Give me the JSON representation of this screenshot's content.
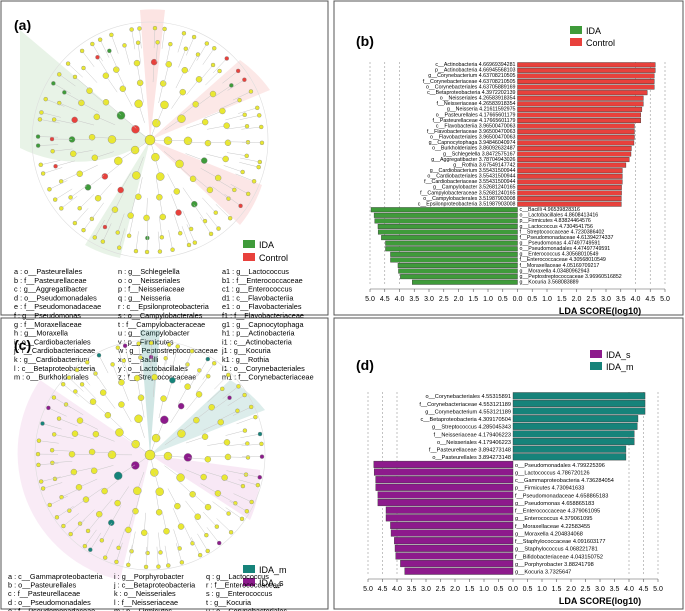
{
  "panels": {
    "a": {
      "label": "(a)",
      "legend": [
        {
          "name": "IDA",
          "color": "#3f9b3a"
        },
        {
          "name": "Control",
          "color": "#e8413c"
        }
      ],
      "key_columns": [
        [
          "a : o__Pasteurellales",
          "b : f__Pasteurellaceae",
          "c : g__Aggregatibacter",
          "d : o__Pseudomonadales",
          "e : f__Pseudomonadaceae",
          "f : g__Pseudomonas",
          "g : f__Moraxellaceae",
          "h : g__Moraxella",
          "i : o__Cardiobacteriales",
          "j : f__Cardiobacteriaceae",
          "k : g__Cardiobacterium",
          "l : c__Betaproteobacteria",
          "m : o__Burkholderiales"
        ],
        [
          "n : g__Schlegelella",
          "o : o__Neisseriales",
          "p : f__Neisseriaceae",
          "q : g__Neisseria",
          "r : c__Epsilonproteobacteria",
          "s : o__Campylobacterales",
          "t : f__Campylobacteraceae",
          "u : g__Campylobacter",
          "v : p__Firmicutes",
          "w : g__Peptostreptococcaceae",
          "x : c__Bacilli",
          "y : o__Lactobacillales",
          "z : f__Streptococcaceae"
        ],
        [
          "a1 : g__Lactococcus",
          "b1 : f__Enterococcaceae",
          "c1 : g__Enterococcus",
          "d1 : c__Flavobacteriia",
          "e1 : o__Flavobacteriales",
          "f1 : f__Flavobacteriaceae",
          "g1 : g__Capnocytophaga",
          "h1 : p__Actinobacteria",
          "i1 : c__Actinobacteria",
          "j1 : g__Kocuria",
          "k1 : g__Rothia",
          "l1 : o__Corynebacteriales",
          "m1 : f__Corynebacteriaceae"
        ]
      ]
    },
    "c": {
      "label": "(c)",
      "legend": [
        {
          "name": "IDA_m",
          "color": "#16837a"
        },
        {
          "name": "IDA_s",
          "color": "#8d1a8c"
        }
      ],
      "key_columns": [
        [
          "a : c__Gammaproteobacteria",
          "b : o__Pasteurellales",
          "c : f__Pasteurellaceae",
          "d : o__Pseudomonadales",
          "e : f__Pseudomonadaceae",
          "f : g__Pseudomonas",
          "g : f__Moraxellaceae",
          "h : g__Moraxella"
        ],
        [
          "i : g__Porphyrobacter",
          "j : c__Betaproteobacteria",
          "k : o__Neisseriales",
          "l : f__Neisseriaceae",
          "m : p__Firmicutes",
          "n : f__Staphylococcaceae",
          "o : g__Staphylococcus",
          "p : g__Streptococcus"
        ],
        [
          "q : g__Lactococcus",
          "r : f__Enterococcaceae",
          "s : g__Enterococcus",
          "t : g__Kocuria",
          "u : o__Corynebacteriales",
          "v : f__Corynebacteriaceae",
          "w : g__Corynebacterium",
          "x : g__unclassified_f__Bifidobacteriaceae"
        ]
      ]
    }
  },
  "chart_data": [
    {
      "panel": "(b)",
      "type": "bar",
      "orientation": "horizontal",
      "xlabel": "LDA SCORE(log10)",
      "xlim": [
        -5,
        5
      ],
      "ticks": [
        "5.0",
        "4.5",
        "4.0",
        "3.5",
        "3.0",
        "2.5",
        "2.0",
        "1.5",
        "1.0",
        "0.5",
        "0.0",
        "0.5",
        "1.0",
        "1.5",
        "2.0",
        "2.5",
        "3.0",
        "3.5",
        "4.0",
        "4.5",
        "5.0"
      ],
      "series": [
        {
          "name": "Control",
          "color": "#e8413c",
          "direction": "right",
          "bars": [
            {
              "label": "c__Actinobacteria 4.66969394281",
              "value": 4.67
            },
            {
              "label": "p__Actinobacteria 4.66945568103",
              "value": 4.669
            },
            {
              "label": "g__Corynebacterium 4.63708210505",
              "value": 4.637
            },
            {
              "label": "f__Corynebacteriaceae 4.63708210505",
              "value": 4.637
            },
            {
              "label": "o__Corynebacteriales 4.63705889169",
              "value": 4.637
            },
            {
              "label": "c__Betaproteobacteria 4.3972202139",
              "value": 4.397
            },
            {
              "label": "o__Neisseriales 4.26583918354",
              "value": 4.266
            },
            {
              "label": "f__Neisseriaceae 4.26583918354",
              "value": 4.266
            },
            {
              "label": "g__Neisseria 4.21611592975",
              "value": 4.216
            },
            {
              "label": "o__Pasteurellales 4.17665601179",
              "value": 4.177
            },
            {
              "label": "f__Pasteurellaceae 4.17665601179",
              "value": 4.177
            },
            {
              "label": "c__Flavobacteriia 3.96500470063",
              "value": 3.965
            },
            {
              "label": "f__Flavobacteriaceae 3.96500470063",
              "value": 3.965
            },
            {
              "label": "o__Flavobacteriales 3.96500470063",
              "value": 3.965
            },
            {
              "label": "g__Capnocytophaga 3.94846040974",
              "value": 3.948
            },
            {
              "label": "o__Burkholderiales 3.86092632487",
              "value": 3.861
            },
            {
              "label": "g__Schlegelella 3.8472575167",
              "value": 3.847
            },
            {
              "label": "g__Aggregatibacter 3.78704943026",
              "value": 3.787
            },
            {
              "label": "g__Rothia 3.67549147742",
              "value": 3.675
            },
            {
              "label": "g__Cardiobacterium 3.55431500944",
              "value": 3.554
            },
            {
              "label": "o__Cardiobacteriales 3.55431500944",
              "value": 3.554
            },
            {
              "label": "f__Cardiobacteriaceae 3.55431500944",
              "value": 3.554
            },
            {
              "label": "g__Campylobacter 3.52681240165",
              "value": 3.527
            },
            {
              "label": "f__Campylobacteraceae 3.52681240165",
              "value": 3.527
            },
            {
              "label": "o__Campylobacterales 3.51987903008",
              "value": 3.52
            },
            {
              "label": "c__Epsilonproteobacteria 3.51987903008",
              "value": 3.52
            }
          ]
        },
        {
          "name": "IDA",
          "color": "#3f9b3a",
          "direction": "left",
          "bars": [
            {
              "label": "c__Bacilli 4.96539828316",
              "value": 4.965
            },
            {
              "label": "o__Lactobacillales 4.8608413416",
              "value": 4.861
            },
            {
              "label": "p__Firmicutes 4.83824464576",
              "value": 4.838
            },
            {
              "label": "g__Lactococcus 4.7304541756",
              "value": 4.73
            },
            {
              "label": "f__Streptococcaceae 4.7230386402",
              "value": 4.723
            },
            {
              "label": "f__Pseudomonadaceae 4.61394274337",
              "value": 4.614
            },
            {
              "label": "g__Pseudomonas 4.47497749591",
              "value": 4.475
            },
            {
              "label": "o__Pseudomonadales 4.47497749591",
              "value": 4.475
            },
            {
              "label": "g__Enterococcus 4.30568010549",
              "value": 4.306
            },
            {
              "label": "f__Enterococcaceae 4.30568010549",
              "value": 4.306
            },
            {
              "label": "f__Moraxellaceae 4.05169709217",
              "value": 4.052
            },
            {
              "label": "g__Moraxella 4.03480962943",
              "value": 4.035
            },
            {
              "label": "g__Peptostreptococcaceae 3.96960516852",
              "value": 3.97
            },
            {
              "label": "g__Kocuria 3.568083889",
              "value": 3.568
            }
          ]
        }
      ]
    },
    {
      "panel": "(d)",
      "type": "bar",
      "orientation": "horizontal",
      "xlabel": "LDA SCORE(log10)",
      "xlim": [
        -5,
        5
      ],
      "ticks": [
        "5.0",
        "4.5",
        "4.0",
        "3.5",
        "3.0",
        "2.5",
        "2.0",
        "1.5",
        "1.0",
        "0.5",
        "0.0",
        "0.5",
        "1.0",
        "1.5",
        "2.0",
        "2.5",
        "3.0",
        "3.5",
        "4.0",
        "4.5",
        "5.0"
      ],
      "series": [
        {
          "name": "IDA_m",
          "color": "#16837a",
          "direction": "right",
          "bars": [
            {
              "label": "o__Corynebacteriales 4.55315891",
              "value": 4.553
            },
            {
              "label": "f__Corynebacteriaceae 4.553121189",
              "value": 4.553
            },
            {
              "label": "g__Corynebacterium 4.553121189",
              "value": 4.553
            },
            {
              "label": "c__Betaproteobacteria 4.309170504",
              "value": 4.309
            },
            {
              "label": "g__Streptococcus 4.285045343",
              "value": 4.285
            },
            {
              "label": "f__Neisseriaceae 4.179406223",
              "value": 4.179
            },
            {
              "label": "o__Neisseriales 4.179406223",
              "value": 4.179
            },
            {
              "label": "f__Pasteurellaceae 3.894273148",
              "value": 3.894
            },
            {
              "label": "o__Pasteurellales 3.894273148",
              "value": 3.894
            }
          ]
        },
        {
          "name": "IDA_s",
          "color": "#8d1a8c",
          "direction": "left",
          "bars": [
            {
              "label": "o__Pseudomonadales 4.799225396",
              "value": 4.799
            },
            {
              "label": "g__Lactococcus 4.786720126",
              "value": 4.787
            },
            {
              "label": "c__Gammaproteobacteria 4.736284054",
              "value": 4.736
            },
            {
              "label": "p__Firmicutes 4.730941633",
              "value": 4.731
            },
            {
              "label": "f__Pseudomonadaceae 4.658865183",
              "value": 4.659
            },
            {
              "label": "g__Pseudomonas 4.658865183",
              "value": 4.659
            },
            {
              "label": "f__Enterococcaceae 4.379061095",
              "value": 4.379
            },
            {
              "label": "g__Enterococcus 4.379061095",
              "value": 4.379
            },
            {
              "label": "f__Moraxellaceae 4.22583455",
              "value": 4.226
            },
            {
              "label": "g__Moraxella 4.204834068",
              "value": 4.205
            },
            {
              "label": "f__Staphylococcaceae 4.091603177",
              "value": 4.092
            },
            {
              "label": "g__Staphylococcus 4.068221781",
              "value": 4.068
            },
            {
              "label": "f__Bifidobacteriaceae 4.043150752",
              "value": 4.043
            },
            {
              "label": "g__Porphyrobacter 3.88241798",
              "value": 3.882
            },
            {
              "label": "g__Kocuria 3.7325647",
              "value": 3.733
            }
          ]
        }
      ]
    }
  ]
}
